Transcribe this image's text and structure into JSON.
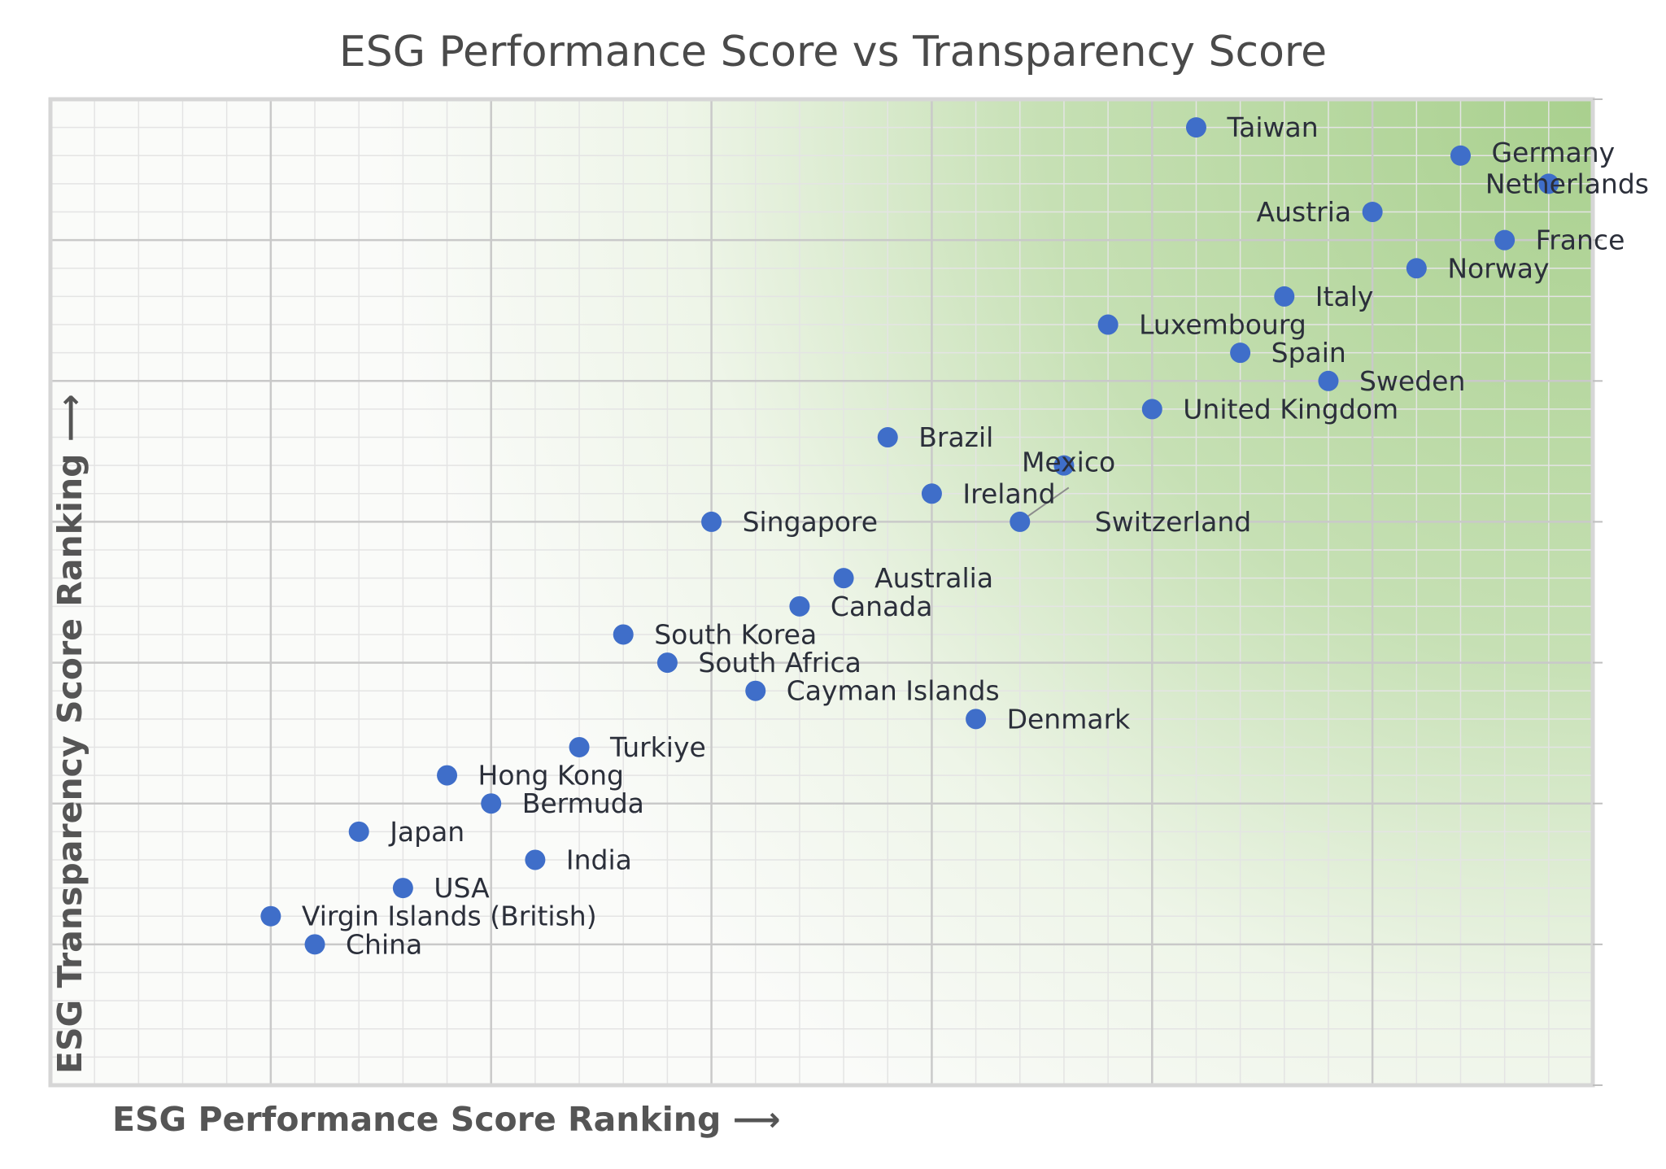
{
  "chart_data": {
    "type": "scatter",
    "title": "ESG Performance Score vs Transparency Score",
    "xlabel": "ESG Performance Score Ranking ⟶",
    "ylabel": "ESG Transparency Score Ranking ⟶",
    "xlim": [
      0,
      35
    ],
    "ylim": [
      0,
      35
    ],
    "grid": true,
    "colors": {
      "point": "#3f6ec9",
      "grid_major": "#c9c9c9",
      "grid_minor": "#e4e4e4",
      "gradient_dark": "#a9d08e"
    },
    "points": [
      {
        "name": "Taiwan",
        "x": 26,
        "y": 34
      },
      {
        "name": "Germany",
        "x": 32,
        "y": 33
      },
      {
        "name": "Netherlands",
        "x": 34,
        "y": 32
      },
      {
        "name": "Austria",
        "x": 30,
        "y": 31
      },
      {
        "name": "France",
        "x": 33,
        "y": 30
      },
      {
        "name": "Norway",
        "x": 31,
        "y": 29
      },
      {
        "name": "Italy",
        "x": 28,
        "y": 28
      },
      {
        "name": "Luxembourg",
        "x": 24,
        "y": 27
      },
      {
        "name": "Spain",
        "x": 27,
        "y": 26
      },
      {
        "name": "Sweden",
        "x": 29,
        "y": 25
      },
      {
        "name": "United Kingdom",
        "x": 25,
        "y": 24
      },
      {
        "name": "Brazil",
        "x": 19,
        "y": 23
      },
      {
        "name": "Mexico",
        "x": 23,
        "y": 22
      },
      {
        "name": "Switzerland",
        "x": 22,
        "y": 20
      },
      {
        "name": "Ireland",
        "x": 20,
        "y": 21
      },
      {
        "name": "Singapore",
        "x": 15,
        "y": 20
      },
      {
        "name": "Australia",
        "x": 18,
        "y": 18
      },
      {
        "name": "Canada",
        "x": 17,
        "y": 17
      },
      {
        "name": "South Korea",
        "x": 13,
        "y": 16
      },
      {
        "name": "South Africa",
        "x": 14,
        "y": 15
      },
      {
        "name": "Cayman Islands",
        "x": 16,
        "y": 14
      },
      {
        "name": "Denmark",
        "x": 21,
        "y": 13
      },
      {
        "name": "Turkiye",
        "x": 12,
        "y": 12
      },
      {
        "name": "Hong Kong",
        "x": 9,
        "y": 11
      },
      {
        "name": "Bermuda",
        "x": 10,
        "y": 10
      },
      {
        "name": "Japan",
        "x": 7,
        "y": 9
      },
      {
        "name": "India",
        "x": 11,
        "y": 8
      },
      {
        "name": "USA",
        "x": 8,
        "y": 7
      },
      {
        "name": "Virgin Islands (British)",
        "x": 5,
        "y": 6
      },
      {
        "name": "China",
        "x": 6,
        "y": 5
      }
    ]
  }
}
